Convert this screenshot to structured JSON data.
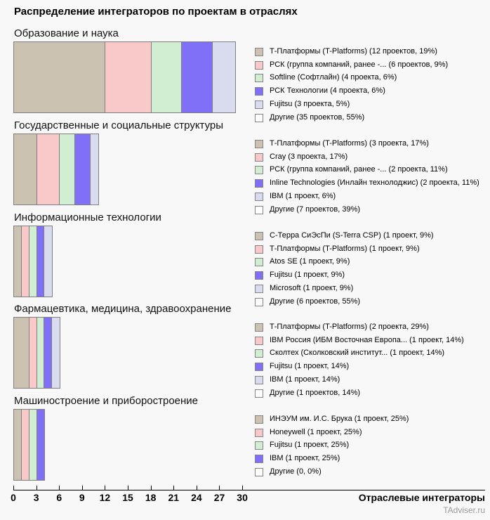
{
  "page": {
    "title": "Распределение интеграторов по проектам в отраслях",
    "x_axis_label": "Отраслевые интеграторы",
    "watermark": "TAdviser.ru"
  },
  "axis": {
    "tick_labels": [
      "0",
      "3",
      "6",
      "9",
      "12",
      "15",
      "18",
      "21",
      "24",
      "27",
      "30"
    ],
    "range": [
      0,
      30
    ],
    "unit": "проекты"
  },
  "palette": {
    "tan": "#ccc2b2",
    "pink": "#f9c8c8",
    "green": "#d2eed2",
    "blue": "#8070f8",
    "lavender": "#d9dbee",
    "white": "#ffffff",
    "bar_border": "#7f7f7f"
  },
  "chart_data": [
    {
      "type": "bar",
      "orientation": "horizontal",
      "stacked": true,
      "title": "Образование и наука",
      "xlim": [
        0,
        30
      ],
      "segments": [
        {
          "label": "Т-Платформы (T-Platforms) (12 проектов, 19%)",
          "value": 12,
          "percent": 19,
          "color": "#ccc2b2",
          "in_bar": true
        },
        {
          "label": "РСК (группа компаний, ранее -... (6 проектов, 9%)",
          "value": 6,
          "percent": 9,
          "color": "#f9c8c8",
          "in_bar": true
        },
        {
          "label": "Softline (Софтлайн) (4 проекта, 6%)",
          "value": 4,
          "percent": 6,
          "color": "#d2eed2",
          "in_bar": true
        },
        {
          "label": "РСК Технологии (4 проекта, 6%)",
          "value": 4,
          "percent": 6,
          "color": "#8070f8",
          "in_bar": true
        },
        {
          "label": "Fujitsu (3 проекта, 5%)",
          "value": 3,
          "percent": 5,
          "color": "#d9dbee",
          "in_bar": true
        },
        {
          "label": "Другие (35 проектов, 55%)",
          "value": 35,
          "percent": 55,
          "color": "#ffffff",
          "in_bar": false
        }
      ]
    },
    {
      "type": "bar",
      "orientation": "horizontal",
      "stacked": true,
      "title": "Государственные и социальные структуры",
      "xlim": [
        0,
        30
      ],
      "segments": [
        {
          "label": "Т-Платформы (T-Platforms) (3 проекта, 17%)",
          "value": 3,
          "percent": 17,
          "color": "#ccc2b2",
          "in_bar": true
        },
        {
          "label": "Cray (3 проекта, 17%)",
          "value": 3,
          "percent": 17,
          "color": "#f9c8c8",
          "in_bar": true
        },
        {
          "label": "РСК (группа компаний, ранее -... (2 проекта, 11%)",
          "value": 2,
          "percent": 11,
          "color": "#d2eed2",
          "in_bar": true
        },
        {
          "label": "Inline Technologies (Инлайн технолоджис) (2 проекта, 11%)",
          "value": 2,
          "percent": 11,
          "color": "#8070f8",
          "in_bar": true
        },
        {
          "label": "IBM (1 проект, 6%)",
          "value": 1,
          "percent": 6,
          "color": "#d9dbee",
          "in_bar": true
        },
        {
          "label": "Другие (7 проектов, 39%)",
          "value": 7,
          "percent": 39,
          "color": "#ffffff",
          "in_bar": false
        }
      ]
    },
    {
      "type": "bar",
      "orientation": "horizontal",
      "stacked": true,
      "title": "Информационные технологии",
      "xlim": [
        0,
        30
      ],
      "segments": [
        {
          "label": "С-Терра СиЭсПи (S-Terra CSP) (1 проект, 9%)",
          "value": 1,
          "percent": 9,
          "color": "#ccc2b2",
          "in_bar": true
        },
        {
          "label": "Т-Платформы (T-Platforms) (1 проект, 9%)",
          "value": 1,
          "percent": 9,
          "color": "#f9c8c8",
          "in_bar": true
        },
        {
          "label": "Atos SE (1 проект, 9%)",
          "value": 1,
          "percent": 9,
          "color": "#d2eed2",
          "in_bar": true
        },
        {
          "label": "Fujitsu (1 проект, 9%)",
          "value": 1,
          "percent": 9,
          "color": "#8070f8",
          "in_bar": true
        },
        {
          "label": "Microsoft (1 проект, 9%)",
          "value": 1,
          "percent": 9,
          "color": "#d9dbee",
          "in_bar": true
        },
        {
          "label": "Другие (6 проектов, 55%)",
          "value": 6,
          "percent": 55,
          "color": "#ffffff",
          "in_bar": false
        }
      ]
    },
    {
      "type": "bar",
      "orientation": "horizontal",
      "stacked": true,
      "title": "Фармацевтика, медицина, здравоохранение",
      "xlim": [
        0,
        30
      ],
      "segments": [
        {
          "label": "Т-Платформы (T-Platforms) (2 проекта, 29%)",
          "value": 2,
          "percent": 29,
          "color": "#ccc2b2",
          "in_bar": true
        },
        {
          "label": "IBM Россия (ИБМ Восточная Европа... (1 проект, 14%)",
          "value": 1,
          "percent": 14,
          "color": "#f9c8c8",
          "in_bar": true
        },
        {
          "label": "Сколтех (Сколковский институт... (1 проект, 14%)",
          "value": 1,
          "percent": 14,
          "color": "#d2eed2",
          "in_bar": true
        },
        {
          "label": "Fujitsu (1 проект, 14%)",
          "value": 1,
          "percent": 14,
          "color": "#8070f8",
          "in_bar": true
        },
        {
          "label": "IBM (1 проект, 14%)",
          "value": 1,
          "percent": 14,
          "color": "#d9dbee",
          "in_bar": true
        },
        {
          "label": "Другие (1 проектов, 14%)",
          "value": 1,
          "percent": 14,
          "color": "#ffffff",
          "in_bar": false
        }
      ]
    },
    {
      "type": "bar",
      "orientation": "horizontal",
      "stacked": true,
      "title": "Машиностроение и приборостроение",
      "xlim": [
        0,
        30
      ],
      "segments": [
        {
          "label": "ИНЭУМ им. И.С. Брука (1 проект, 25%)",
          "value": 1,
          "percent": 25,
          "color": "#ccc2b2",
          "in_bar": true
        },
        {
          "label": "Honeywell (1 проект, 25%)",
          "value": 1,
          "percent": 25,
          "color": "#f9c8c8",
          "in_bar": true
        },
        {
          "label": "Fujitsu (1 проект, 25%)",
          "value": 1,
          "percent": 25,
          "color": "#d2eed2",
          "in_bar": true
        },
        {
          "label": "IBM (1 проект, 25%)",
          "value": 1,
          "percent": 25,
          "color": "#8070f8",
          "in_bar": true
        },
        {
          "label": "Другие (0, 0%)",
          "value": 0,
          "percent": 0,
          "color": "#ffffff",
          "in_bar": false
        }
      ]
    }
  ]
}
